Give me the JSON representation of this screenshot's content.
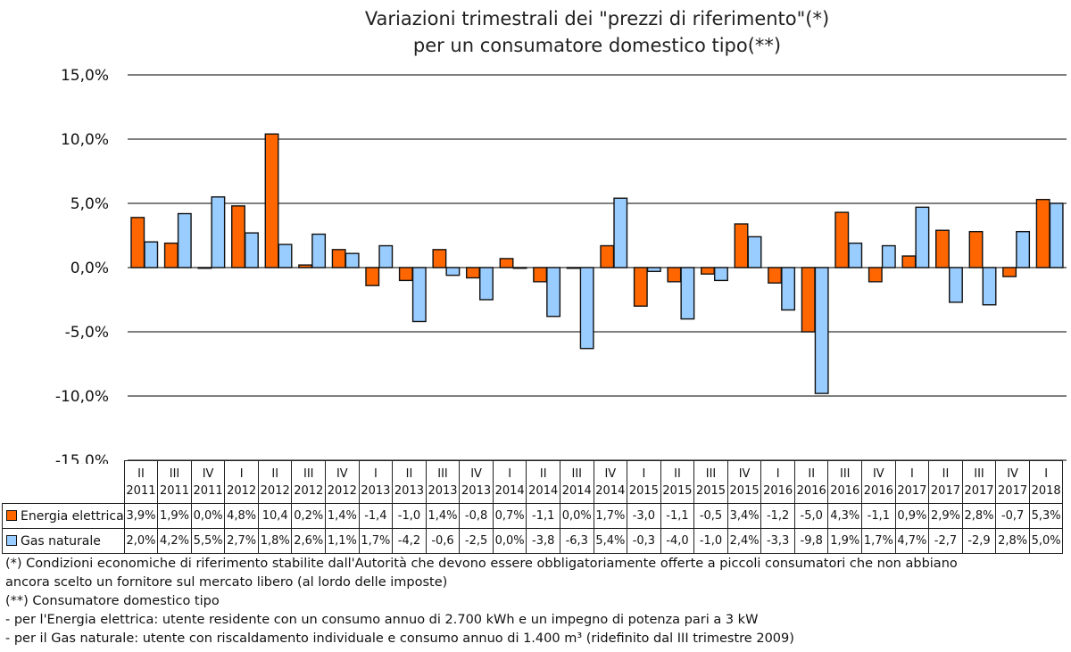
{
  "chart_data": {
    "type": "bar",
    "title": "Variazioni trimestrali dei \"prezzi di riferimento\"(*)",
    "subtitle": "per un consumatore domestico tipo(**)",
    "xlabel": "",
    "ylabel": "",
    "ylim": [
      -15,
      15
    ],
    "yticks": [
      15,
      10,
      5,
      0,
      -5,
      -10,
      -15
    ],
    "ytick_labels": [
      "15,0%",
      "10,0%",
      "5,0%",
      "0,0%",
      "-5,0%",
      "-10,0%",
      "-15,0%"
    ],
    "grid": true,
    "legend": "table-below",
    "categories": [
      {
        "q": "II",
        "y": "2011"
      },
      {
        "q": "III",
        "y": "2011"
      },
      {
        "q": "IV",
        "y": "2011"
      },
      {
        "q": "I",
        "y": "2012"
      },
      {
        "q": "II",
        "y": "2012"
      },
      {
        "q": "III",
        "y": "2012"
      },
      {
        "q": "IV",
        "y": "2012"
      },
      {
        "q": "I",
        "y": "2013"
      },
      {
        "q": "II",
        "y": "2013"
      },
      {
        "q": "III",
        "y": "2013"
      },
      {
        "q": "IV",
        "y": "2013"
      },
      {
        "q": "I",
        "y": "2014"
      },
      {
        "q": "II",
        "y": "2014"
      },
      {
        "q": "III",
        "y": "2014"
      },
      {
        "q": "IV",
        "y": "2014"
      },
      {
        "q": "I",
        "y": "2015"
      },
      {
        "q": "II",
        "y": "2015"
      },
      {
        "q": "III",
        "y": "2015"
      },
      {
        "q": "IV",
        "y": "2015"
      },
      {
        "q": "I",
        "y": "2016"
      },
      {
        "q": "II",
        "y": "2016"
      },
      {
        "q": "III",
        "y": "2016"
      },
      {
        "q": "IV",
        "y": "2016"
      },
      {
        "q": "I",
        "y": "2017"
      },
      {
        "q": "II",
        "y": "2017"
      },
      {
        "q": "III",
        "y": "2017"
      },
      {
        "q": "IV",
        "y": "2017"
      },
      {
        "q": "I",
        "y": "2018"
      }
    ],
    "series": [
      {
        "name": "Energia elettrica",
        "color": "#FF6600",
        "values": [
          3.9,
          1.9,
          0.0,
          4.8,
          10.4,
          0.2,
          1.4,
          -1.4,
          -1.0,
          1.4,
          -0.8,
          0.7,
          -1.1,
          0.0,
          1.7,
          -3.0,
          -1.1,
          -0.5,
          3.4,
          -1.2,
          -5.0,
          4.3,
          -1.1,
          0.9,
          2.9,
          2.8,
          -0.7,
          5.3
        ],
        "labels": [
          "3,9%",
          "1,9%",
          "0,0%",
          "4,8%",
          "10,4",
          "0,2%",
          "1,4%",
          "-1,4",
          "-1,0",
          "1,4%",
          "-0,8",
          "0,7%",
          "-1,1",
          "0,0%",
          "1,7%",
          "-3,0",
          "-1,1",
          "-0,5",
          "3,4%",
          "-1,2",
          "-5,0",
          "4,3%",
          "-1,1",
          "0,9%",
          "2,9%",
          "2,8%",
          "-0,7",
          "5,3%"
        ]
      },
      {
        "name": "Gas naturale",
        "color": "#99CCFF",
        "values": [
          2.0,
          4.2,
          5.5,
          2.7,
          1.8,
          2.6,
          1.1,
          1.7,
          -4.2,
          -0.6,
          -2.5,
          0.0,
          -3.8,
          -6.3,
          5.4,
          -0.3,
          -4.0,
          -1.0,
          2.4,
          -3.3,
          -9.8,
          1.9,
          1.7,
          4.7,
          -2.7,
          -2.9,
          2.8,
          5.0
        ],
        "labels": [
          "2,0%",
          "4,2%",
          "5,5%",
          "2,7%",
          "1,8%",
          "2,6%",
          "1,1%",
          "1,7%",
          "-4,2",
          "-0,6",
          "-2,5",
          "0,0%",
          "-3,8",
          "-6,3",
          "5,4%",
          "-0,3",
          "-4,0",
          "-1,0",
          "2,4%",
          "-3,3",
          "-9,8",
          "1,9%",
          "1,7%",
          "4,7%",
          "-2,7",
          "-2,9",
          "2,8%",
          "5,0%"
        ]
      }
    ]
  },
  "notes": [
    "(*) Condizioni economiche di riferimento stabilite dall'Autorità che devono essere obbligatoriamente offerte a piccoli consumatori che non abbiano",
    "ancora scelto un fornitore sul mercato libero (al lordo delle imposte)",
    "(**) Consumatore domestico tipo",
    "- per l'Energia elettrica: utente residente con un consumo annuo di 2.700 kWh e un impegno di potenza pari a 3 kW",
    "- per il Gas naturale: utente con riscaldamento individuale e consumo annuo di 1.400 m³ (ridefinito dal III trimestre 2009)"
  ]
}
